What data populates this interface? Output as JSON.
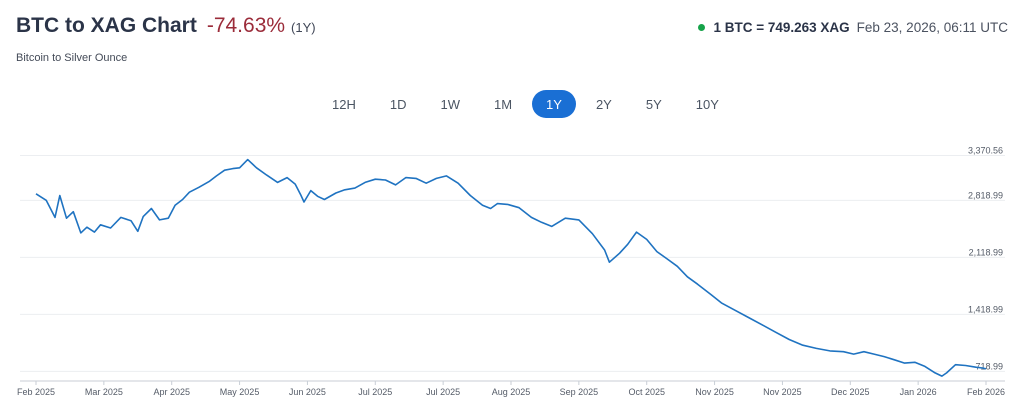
{
  "header": {
    "title": "BTC to XAG Chart",
    "change": "-74.63%",
    "period": "(1Y)",
    "subtitle": "Bitcoin to Silver Ounce"
  },
  "rate": {
    "value": "1 BTC = 749.263 XAG",
    "timestamp": "Feb 23, 2026, 06:11 UTC",
    "status_color": "#16a34a"
  },
  "ranges": {
    "items": [
      "12H",
      "1D",
      "1W",
      "1M",
      "1Y",
      "2Y",
      "5Y",
      "10Y"
    ],
    "active": "1Y"
  },
  "colors": {
    "line": "#1f73c1",
    "accent": "#1a6fd4",
    "negative": "#9b2c3a"
  },
  "chart_data": {
    "type": "line",
    "title": "",
    "xlabel": "",
    "ylabel": "",
    "x_tick_labels": [
      "Feb 2025",
      "Mar 2025",
      "Apr 2025",
      "May 2025",
      "Jun 2025",
      "Jul 2025",
      "Jul 2025",
      "Aug 2025",
      "Sep 2025",
      "Oct 2025",
      "Nov 2025",
      "Nov 2025",
      "Dec 2025",
      "Jan 2026",
      "Feb 2026"
    ],
    "y_tick_labels": [
      "3,370.56",
      "2,818.99",
      "2,118.99",
      "1,418.99",
      "718.99"
    ],
    "y_tick_values": [
      3370.56,
      2818.99,
      2118.99,
      1418.99,
      718.99
    ],
    "ylim": [
      600,
      3500
    ],
    "grid": "horizontal",
    "series": [
      {
        "name": "",
        "x_index": [
          0,
          0.15,
          0.28,
          0.35,
          0.45,
          0.55,
          0.66,
          0.75,
          0.86,
          0.95,
          1.1,
          1.25,
          1.4,
          1.5,
          1.58,
          1.7,
          1.82,
          1.95,
          2.05,
          2.16,
          2.26,
          2.4,
          2.55,
          2.66,
          2.78,
          2.9,
          3.0,
          3.12,
          3.25,
          3.4,
          3.56,
          3.7,
          3.82,
          3.9,
          3.95,
          4.05,
          4.15,
          4.25,
          4.42,
          4.55,
          4.7,
          4.85,
          5.0,
          5.15,
          5.3,
          5.45,
          5.6,
          5.75,
          5.9,
          6.05,
          6.22,
          6.4,
          6.58,
          6.7,
          6.8,
          6.95,
          7.12,
          7.3,
          7.45,
          7.6,
          7.8,
          8.0,
          8.2,
          8.38,
          8.45,
          8.6,
          8.72,
          8.85,
          9.0,
          9.15,
          9.3,
          9.45,
          9.6,
          9.75,
          9.95,
          10.1,
          10.3,
          10.5,
          10.7,
          10.9,
          11.1,
          11.3,
          11.5,
          11.7,
          11.9,
          12.05,
          12.2,
          12.35,
          12.5,
          12.65,
          12.8,
          12.95,
          13.1,
          13.25,
          13.35,
          13.42,
          13.55,
          13.7,
          13.85,
          13.95,
          14.0
        ],
        "values": [
          2900,
          2820,
          2610,
          2880,
          2600,
          2680,
          2420,
          2490,
          2430,
          2520,
          2480,
          2610,
          2570,
          2440,
          2620,
          2720,
          2580,
          2600,
          2760,
          2830,
          2920,
          2980,
          3050,
          3120,
          3190,
          3210,
          3220,
          3320,
          3220,
          3130,
          3040,
          3100,
          3020,
          2890,
          2800,
          2940,
          2870,
          2830,
          2910,
          2950,
          2970,
          3040,
          3080,
          3070,
          3010,
          3100,
          3090,
          3030,
          3090,
          3120,
          3030,
          2880,
          2760,
          2720,
          2780,
          2770,
          2730,
          2610,
          2550,
          2500,
          2600,
          2580,
          2410,
          2210,
          2060,
          2170,
          2280,
          2430,
          2340,
          2190,
          2100,
          2010,
          1880,
          1790,
          1660,
          1560,
          1470,
          1380,
          1290,
          1200,
          1110,
          1040,
          1000,
          970,
          960,
          930,
          960,
          930,
          900,
          860,
          820,
          830,
          780,
          700,
          660,
          700,
          800,
          790,
          770,
          760,
          749
        ]
      }
    ]
  }
}
